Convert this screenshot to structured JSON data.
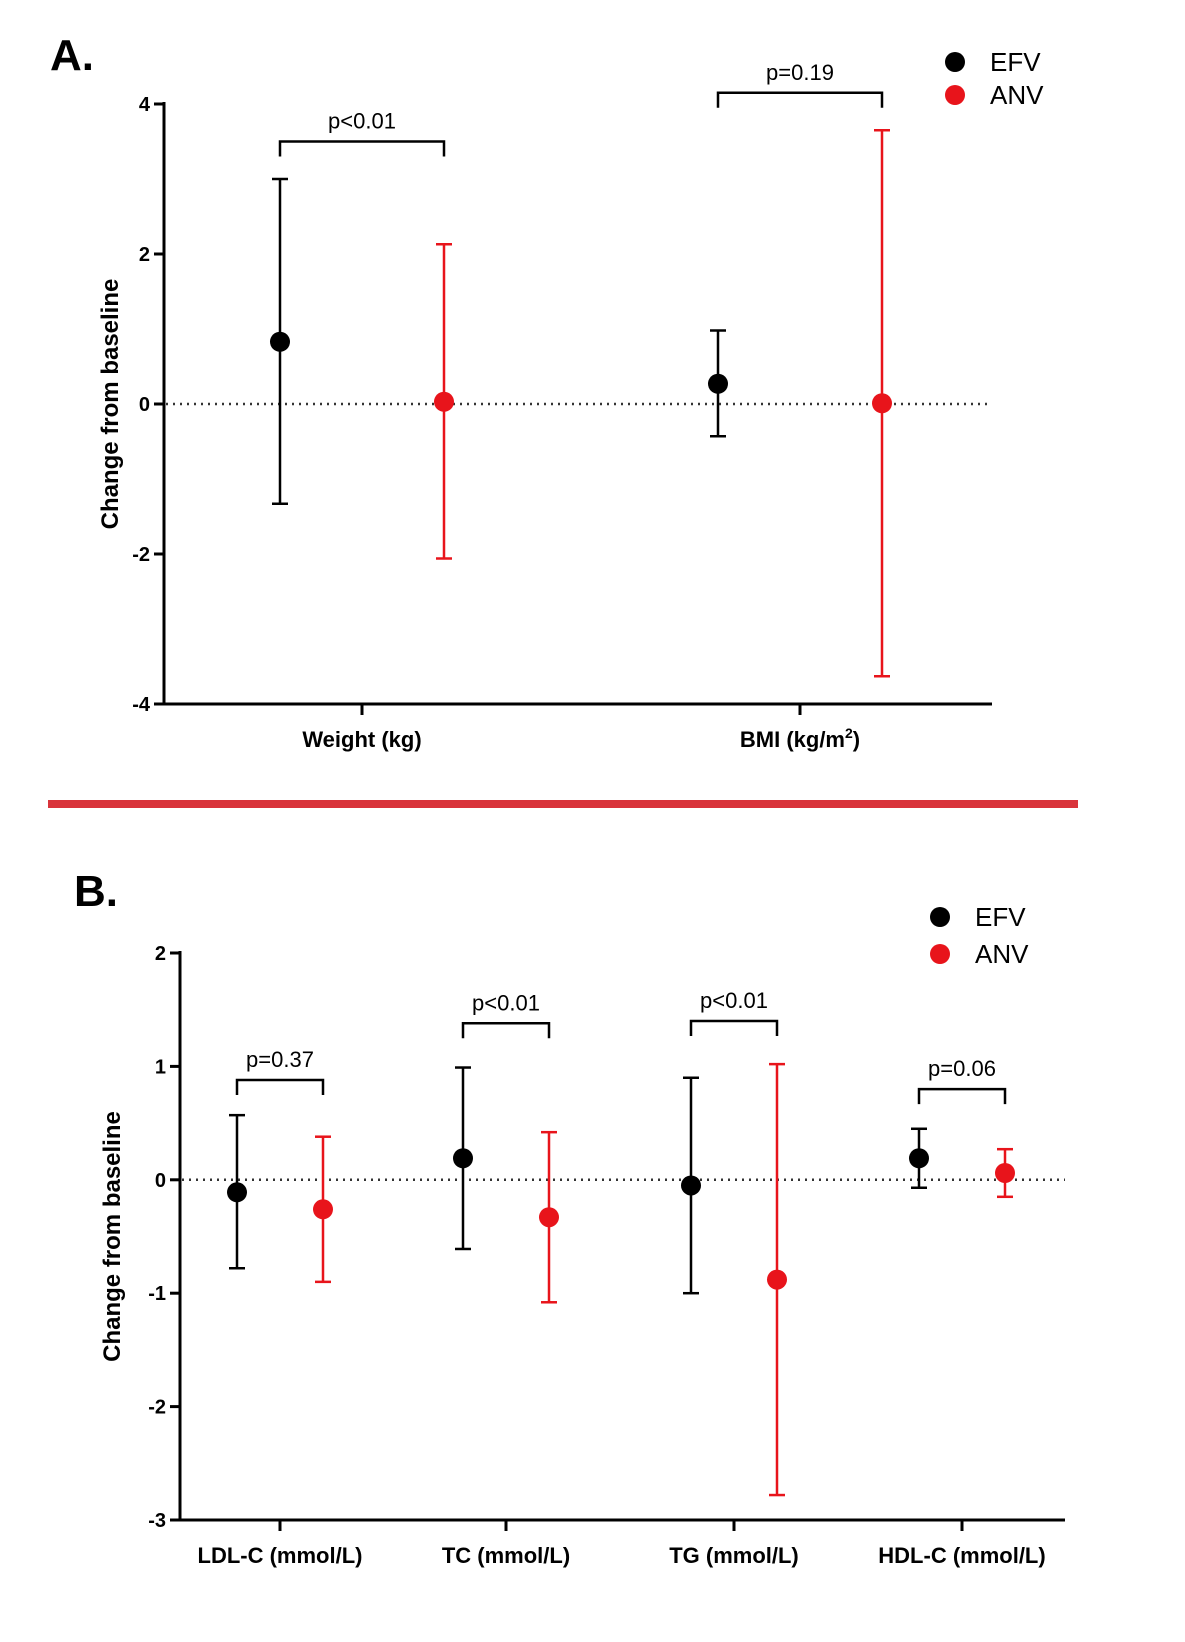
{
  "divider_color": "#d9343b",
  "colors": {
    "EFV": "#000000",
    "ANV": "#e8141b"
  },
  "chart_data": [
    {
      "type": "scatter",
      "panel_label": "A.",
      "ylabel": "Change from baseline",
      "ylim": [
        -4,
        4
      ],
      "yticks": [
        4,
        2,
        0,
        -2,
        -4
      ],
      "yticks_text": [
        "4",
        "2",
        "0",
        "-2",
        "-4"
      ],
      "reference_line": 0,
      "categories": [
        {
          "label_main": "Weight (kg)",
          "label_sup": ""
        },
        {
          "label_main": "BMI (kg/m",
          "label_sup": "2",
          "label_tail": ")"
        }
      ],
      "legend": {
        "position": "top-right",
        "entries": [
          "EFV",
          "ANV"
        ]
      },
      "series": [
        {
          "name": "EFV",
          "values": [
            0.83,
            0.27
          ],
          "lower": [
            -1.33,
            -0.43
          ],
          "upper": [
            3.0,
            0.98
          ]
        },
        {
          "name": "ANV",
          "values": [
            0.03,
            0.01
          ],
          "lower": [
            -2.06,
            -3.63
          ],
          "upper": [
            2.13,
            3.65
          ]
        }
      ],
      "pvalues": [
        "p<0.01",
        "p=0.19"
      ],
      "bracket_y": [
        3.5,
        4.15
      ]
    },
    {
      "type": "scatter",
      "panel_label": "B.",
      "ylabel": "Change from baseline",
      "ylim": [
        -3,
        2
      ],
      "yticks": [
        2,
        1,
        0,
        -1,
        -2,
        -3
      ],
      "yticks_text": [
        "2",
        "1",
        "0",
        "-1",
        "-2",
        "-3"
      ],
      "reference_line": 0,
      "categories": [
        {
          "label_main": "LDL-C (mmol/L)",
          "label_sup": ""
        },
        {
          "label_main": "TC (mmol/L)",
          "label_sup": ""
        },
        {
          "label_main": "TG (mmol/L)",
          "label_sup": ""
        },
        {
          "label_main": "HDL-C (mmol/L)",
          "label_sup": ""
        }
      ],
      "legend": {
        "position": "top-right",
        "entries": [
          "EFV",
          "ANV"
        ]
      },
      "series": [
        {
          "name": "EFV",
          "values": [
            -0.11,
            0.19,
            -0.05,
            0.19
          ],
          "lower": [
            -0.78,
            -0.61,
            -1.0,
            -0.07
          ],
          "upper": [
            0.57,
            0.99,
            0.9,
            0.45
          ]
        },
        {
          "name": "ANV",
          "values": [
            -0.26,
            -0.33,
            -0.88,
            0.06
          ],
          "lower": [
            -0.9,
            -1.08,
            -2.78,
            -0.15
          ],
          "upper": [
            0.38,
            0.42,
            1.02,
            0.27
          ]
        }
      ],
      "pvalues": [
        "p=0.37",
        "p<0.01",
        "p<0.01",
        "p=0.06"
      ],
      "bracket_y": [
        0.88,
        1.38,
        1.4,
        0.8
      ]
    }
  ]
}
